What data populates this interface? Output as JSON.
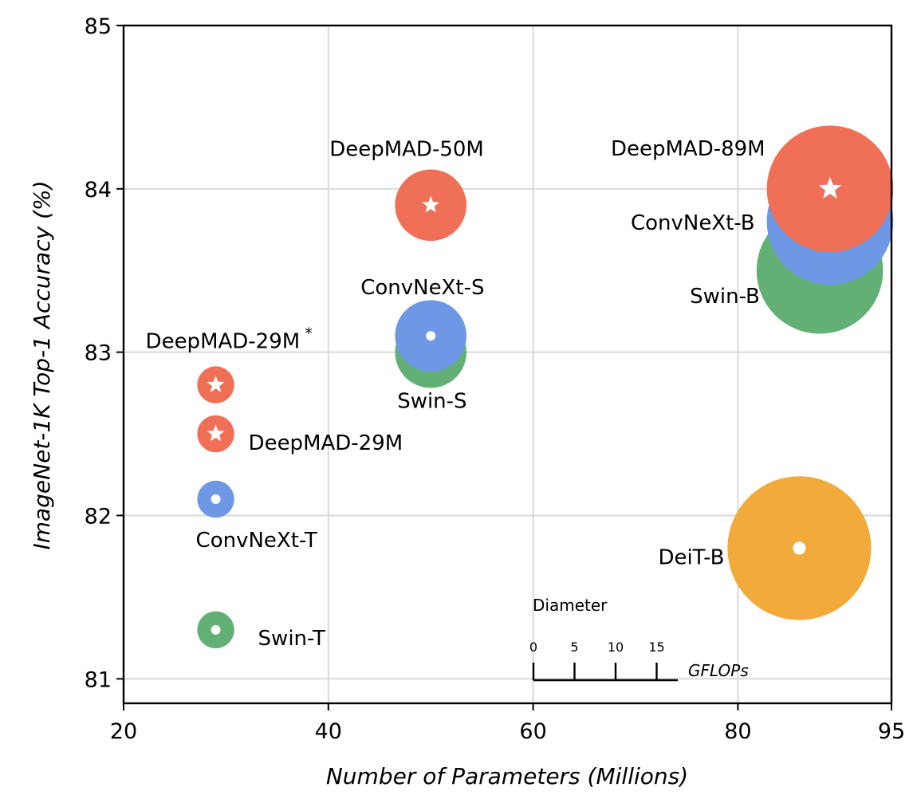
{
  "chart_data": {
    "type": "scatter",
    "xlabel": "Number of Parameters (Millions)",
    "ylabel": "ImageNet-1K Top-1 Accuracy (%)",
    "xlim": [
      20,
      95
    ],
    "ylim": [
      80.85,
      85
    ],
    "x_ticks": [
      20,
      40,
      60,
      80,
      95
    ],
    "y_ticks": [
      81,
      82,
      83,
      84,
      85
    ],
    "grid": true,
    "colors": {
      "DeepMAD": "#F07057",
      "ConvNeXt": "#6E98E6",
      "Swin": "#63B076",
      "DeiT": "#F2AA3B"
    },
    "points": [
      {
        "label": "DeepMAD-29M*",
        "family": "DeepMAD",
        "x": 29,
        "y": 82.8,
        "gflops": 4.5,
        "marker": "star"
      },
      {
        "label": "DeepMAD-29M",
        "family": "DeepMAD",
        "x": 29,
        "y": 82.5,
        "gflops": 4.5,
        "marker": "star"
      },
      {
        "label": "ConvNeXt-T",
        "family": "ConvNeXt",
        "x": 29,
        "y": 82.1,
        "gflops": 4.5,
        "marker": "dot"
      },
      {
        "label": "Swin-T",
        "family": "Swin",
        "x": 29,
        "y": 81.3,
        "gflops": 4.5,
        "marker": "dot"
      },
      {
        "label": "Swin-S",
        "family": "Swin",
        "x": 50,
        "y": 83.0,
        "gflops": 8.7,
        "marker": "dot"
      },
      {
        "label": "ConvNeXt-S",
        "family": "ConvNeXt",
        "x": 50,
        "y": 83.1,
        "gflops": 8.7,
        "marker": "dot"
      },
      {
        "label": "DeepMAD-50M",
        "family": "DeepMAD",
        "x": 50,
        "y": 83.9,
        "gflops": 8.7,
        "marker": "star"
      },
      {
        "label": "DeiT-B",
        "family": "DeiT",
        "x": 86,
        "y": 81.8,
        "gflops": 17.5,
        "marker": "dot"
      },
      {
        "label": "Swin-B",
        "family": "Swin",
        "x": 88,
        "y": 83.5,
        "gflops": 15.4,
        "marker": "dot"
      },
      {
        "label": "ConvNeXt-B",
        "family": "ConvNeXt",
        "x": 89,
        "y": 83.8,
        "gflops": 15.4,
        "marker": "dot"
      },
      {
        "label": "DeepMAD-89M",
        "family": "DeepMAD",
        "x": 89,
        "y": 84.0,
        "gflops": 15.4,
        "marker": "star"
      }
    ],
    "size_legend": {
      "title": "Diameter",
      "ticks": [
        0,
        5,
        10,
        15
      ],
      "unit": "GFLOPs"
    }
  }
}
